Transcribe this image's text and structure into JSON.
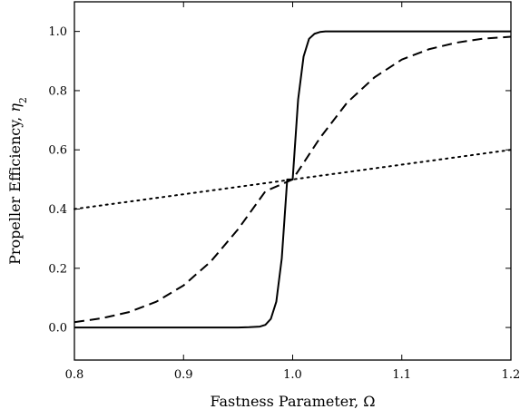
{
  "chart_data": {
    "type": "line",
    "xlabel": "Fastness Parameter, Ω",
    "ylabel_text": "Propeller Efficiency, ",
    "ylabel_symbol": "η",
    "ylabel_subscript": "2",
    "xlim": [
      0.8,
      1.2
    ],
    "ylim": [
      -0.11,
      1.1
    ],
    "x_ticks": [
      0.8,
      0.9,
      1.0,
      1.1,
      1.2
    ],
    "x_tick_labels": [
      "0.8",
      "0.9",
      "1.0",
      "1.1",
      "1.2"
    ],
    "y_ticks": [
      0.0,
      0.2,
      0.4,
      0.6,
      0.8,
      1.0
    ],
    "y_tick_labels": [
      "0.0",
      "0.2",
      "0.4",
      "0.6",
      "0.8",
      "1.0"
    ],
    "grid": false,
    "legend": "none",
    "series": [
      {
        "style": "solid",
        "x": [
          0.8,
          0.9,
          0.95,
          0.96,
          0.97,
          0.975,
          0.98,
          0.985,
          0.99,
          0.995,
          1.0,
          1.005,
          1.01,
          1.015,
          1.02,
          1.025,
          1.03,
          1.04,
          1.05,
          1.1,
          1.2
        ],
        "y": [
          0.0,
          0.0,
          0.0,
          0.001,
          0.003,
          0.009,
          0.029,
          0.087,
          0.233,
          0.5,
          0.5,
          0.77,
          0.915,
          0.975,
          0.992,
          0.998,
          1.0,
          1.0,
          1.0,
          1.0,
          1.0
        ]
      },
      {
        "style": "dashed",
        "x": [
          0.8,
          0.825,
          0.85,
          0.875,
          0.9,
          0.925,
          0.95,
          0.975,
          1.0,
          1.025,
          1.05,
          1.075,
          1.1,
          1.125,
          1.15,
          1.175,
          1.2
        ],
        "y": [
          0.018,
          0.031,
          0.052,
          0.087,
          0.142,
          0.223,
          0.332,
          0.46,
          0.5,
          0.64,
          0.76,
          0.845,
          0.905,
          0.94,
          0.962,
          0.976,
          0.982
        ]
      },
      {
        "style": "dotted",
        "x": [
          0.8,
          1.2
        ],
        "y": [
          0.4,
          0.6
        ]
      }
    ]
  }
}
